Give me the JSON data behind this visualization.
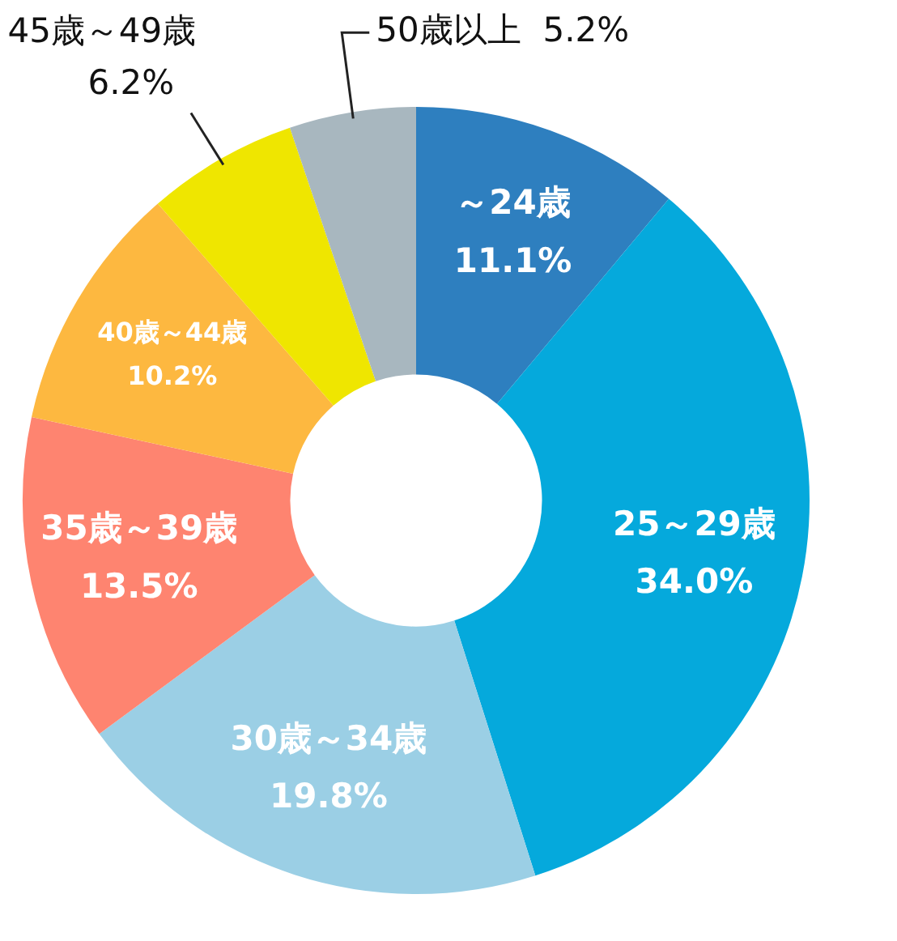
{
  "chart_data": {
    "type": "donut",
    "categories": [
      "～24歳",
      "25～29歳",
      "30歳～34歳",
      "35歳～39歳",
      "40歳～44歳",
      "45歳～49歳",
      "50歳以上"
    ],
    "values": [
      11.1,
      34.0,
      19.8,
      13.5,
      10.2,
      6.2,
      5.2
    ],
    "value_labels": [
      "11.1%",
      "34.0%",
      "19.8%",
      "13.5%",
      "10.2%",
      "6.2%",
      "5.2%"
    ],
    "colors": [
      "#2e7fbf",
      "#05a9dc",
      "#9bcfe5",
      "#fe8470",
      "#fdb840",
      "#efe600",
      "#a8b7bf"
    ],
    "legend": false
  }
}
